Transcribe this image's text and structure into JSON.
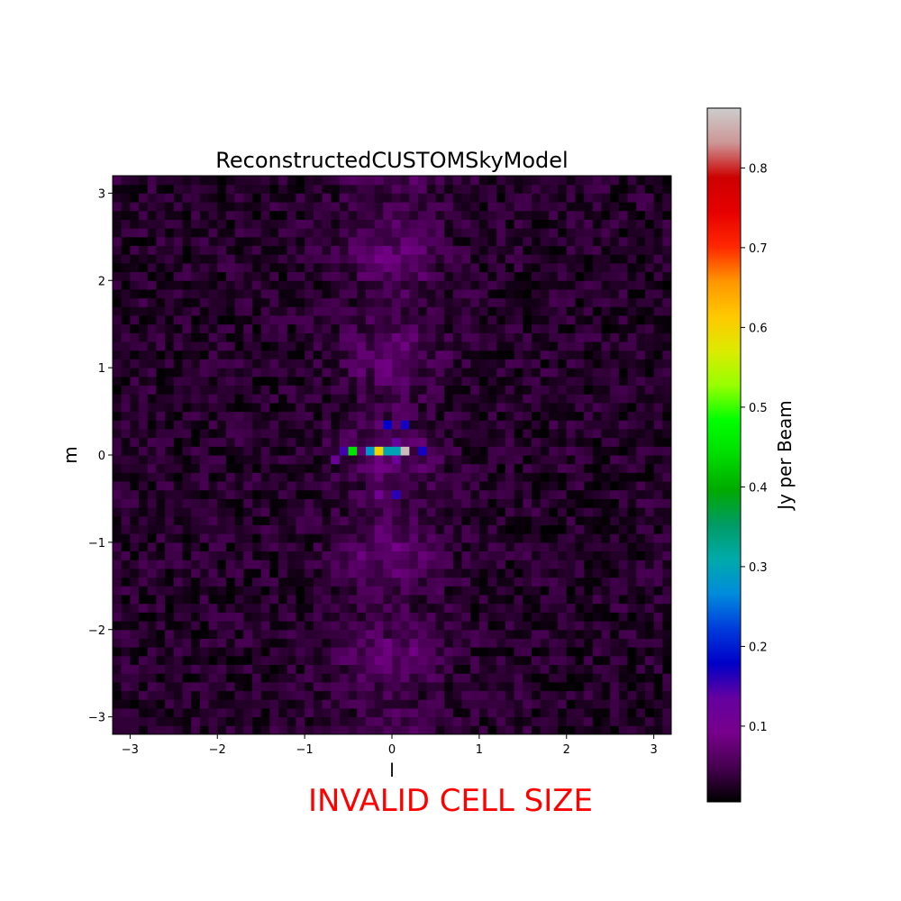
{
  "chart_data": {
    "type": "heatmap",
    "title": "ReconstructedCUSTOMSkyModel",
    "xlabel": "l",
    "ylabel": "m",
    "xlim": [
      -3.2,
      3.2
    ],
    "ylim": [
      -3.2,
      3.2
    ],
    "x_ticks": [
      -3,
      -2,
      -1,
      0,
      1,
      2,
      3
    ],
    "y_ticks": [
      -3,
      -2,
      -1,
      0,
      1,
      2,
      3
    ],
    "x_tick_labels": [
      "−3",
      "−2",
      "−1",
      "0",
      "1",
      "2",
      "3"
    ],
    "y_tick_labels": [
      "−3",
      "−2",
      "−1",
      "0",
      "1",
      "2",
      "3"
    ],
    "grid_size": 64,
    "colormap": "nipy_spectral",
    "colorbar": {
      "label": "Jy per Beam",
      "range": [
        0.005,
        0.875
      ],
      "ticks": [
        0.1,
        0.2,
        0.3,
        0.4,
        0.5,
        0.6,
        0.7,
        0.8
      ],
      "tick_labels": [
        "0.1",
        "0.2",
        "0.3",
        "0.4",
        "0.5",
        "0.6",
        "0.7",
        "0.8"
      ]
    },
    "background_level": 0.05,
    "bright_pixels": [
      {
        "l": -0.55,
        "m": 0.05,
        "value": 0.15
      },
      {
        "l": -0.45,
        "m": 0.05,
        "value": 0.45
      },
      {
        "l": -0.25,
        "m": 0.05,
        "value": 0.28
      },
      {
        "l": -0.15,
        "m": 0.05,
        "value": 0.6
      },
      {
        "l": -0.05,
        "m": 0.05,
        "value": 0.3
      },
      {
        "l": 0.05,
        "m": 0.05,
        "value": 0.3
      },
      {
        "l": 0.15,
        "m": 0.05,
        "value": 0.86
      },
      {
        "l": 0.35,
        "m": 0.05,
        "value": 0.17
      },
      {
        "l": -0.05,
        "m": 0.35,
        "value": 0.18
      },
      {
        "l": 0.15,
        "m": 0.35,
        "value": 0.17
      },
      {
        "l": 0.05,
        "m": 0.15,
        "value": 0.13
      },
      {
        "l": -0.65,
        "m": -0.05,
        "value": 0.12
      },
      {
        "l": 0.05,
        "m": -0.05,
        "value": 0.12
      },
      {
        "l": 0.05,
        "m": -0.45,
        "value": 0.16
      },
      {
        "l": -0.15,
        "m": -0.45,
        "value": 0.11
      }
    ],
    "annotation": "INVALID CELL SIZE",
    "annotation_color": "#ff0000"
  }
}
